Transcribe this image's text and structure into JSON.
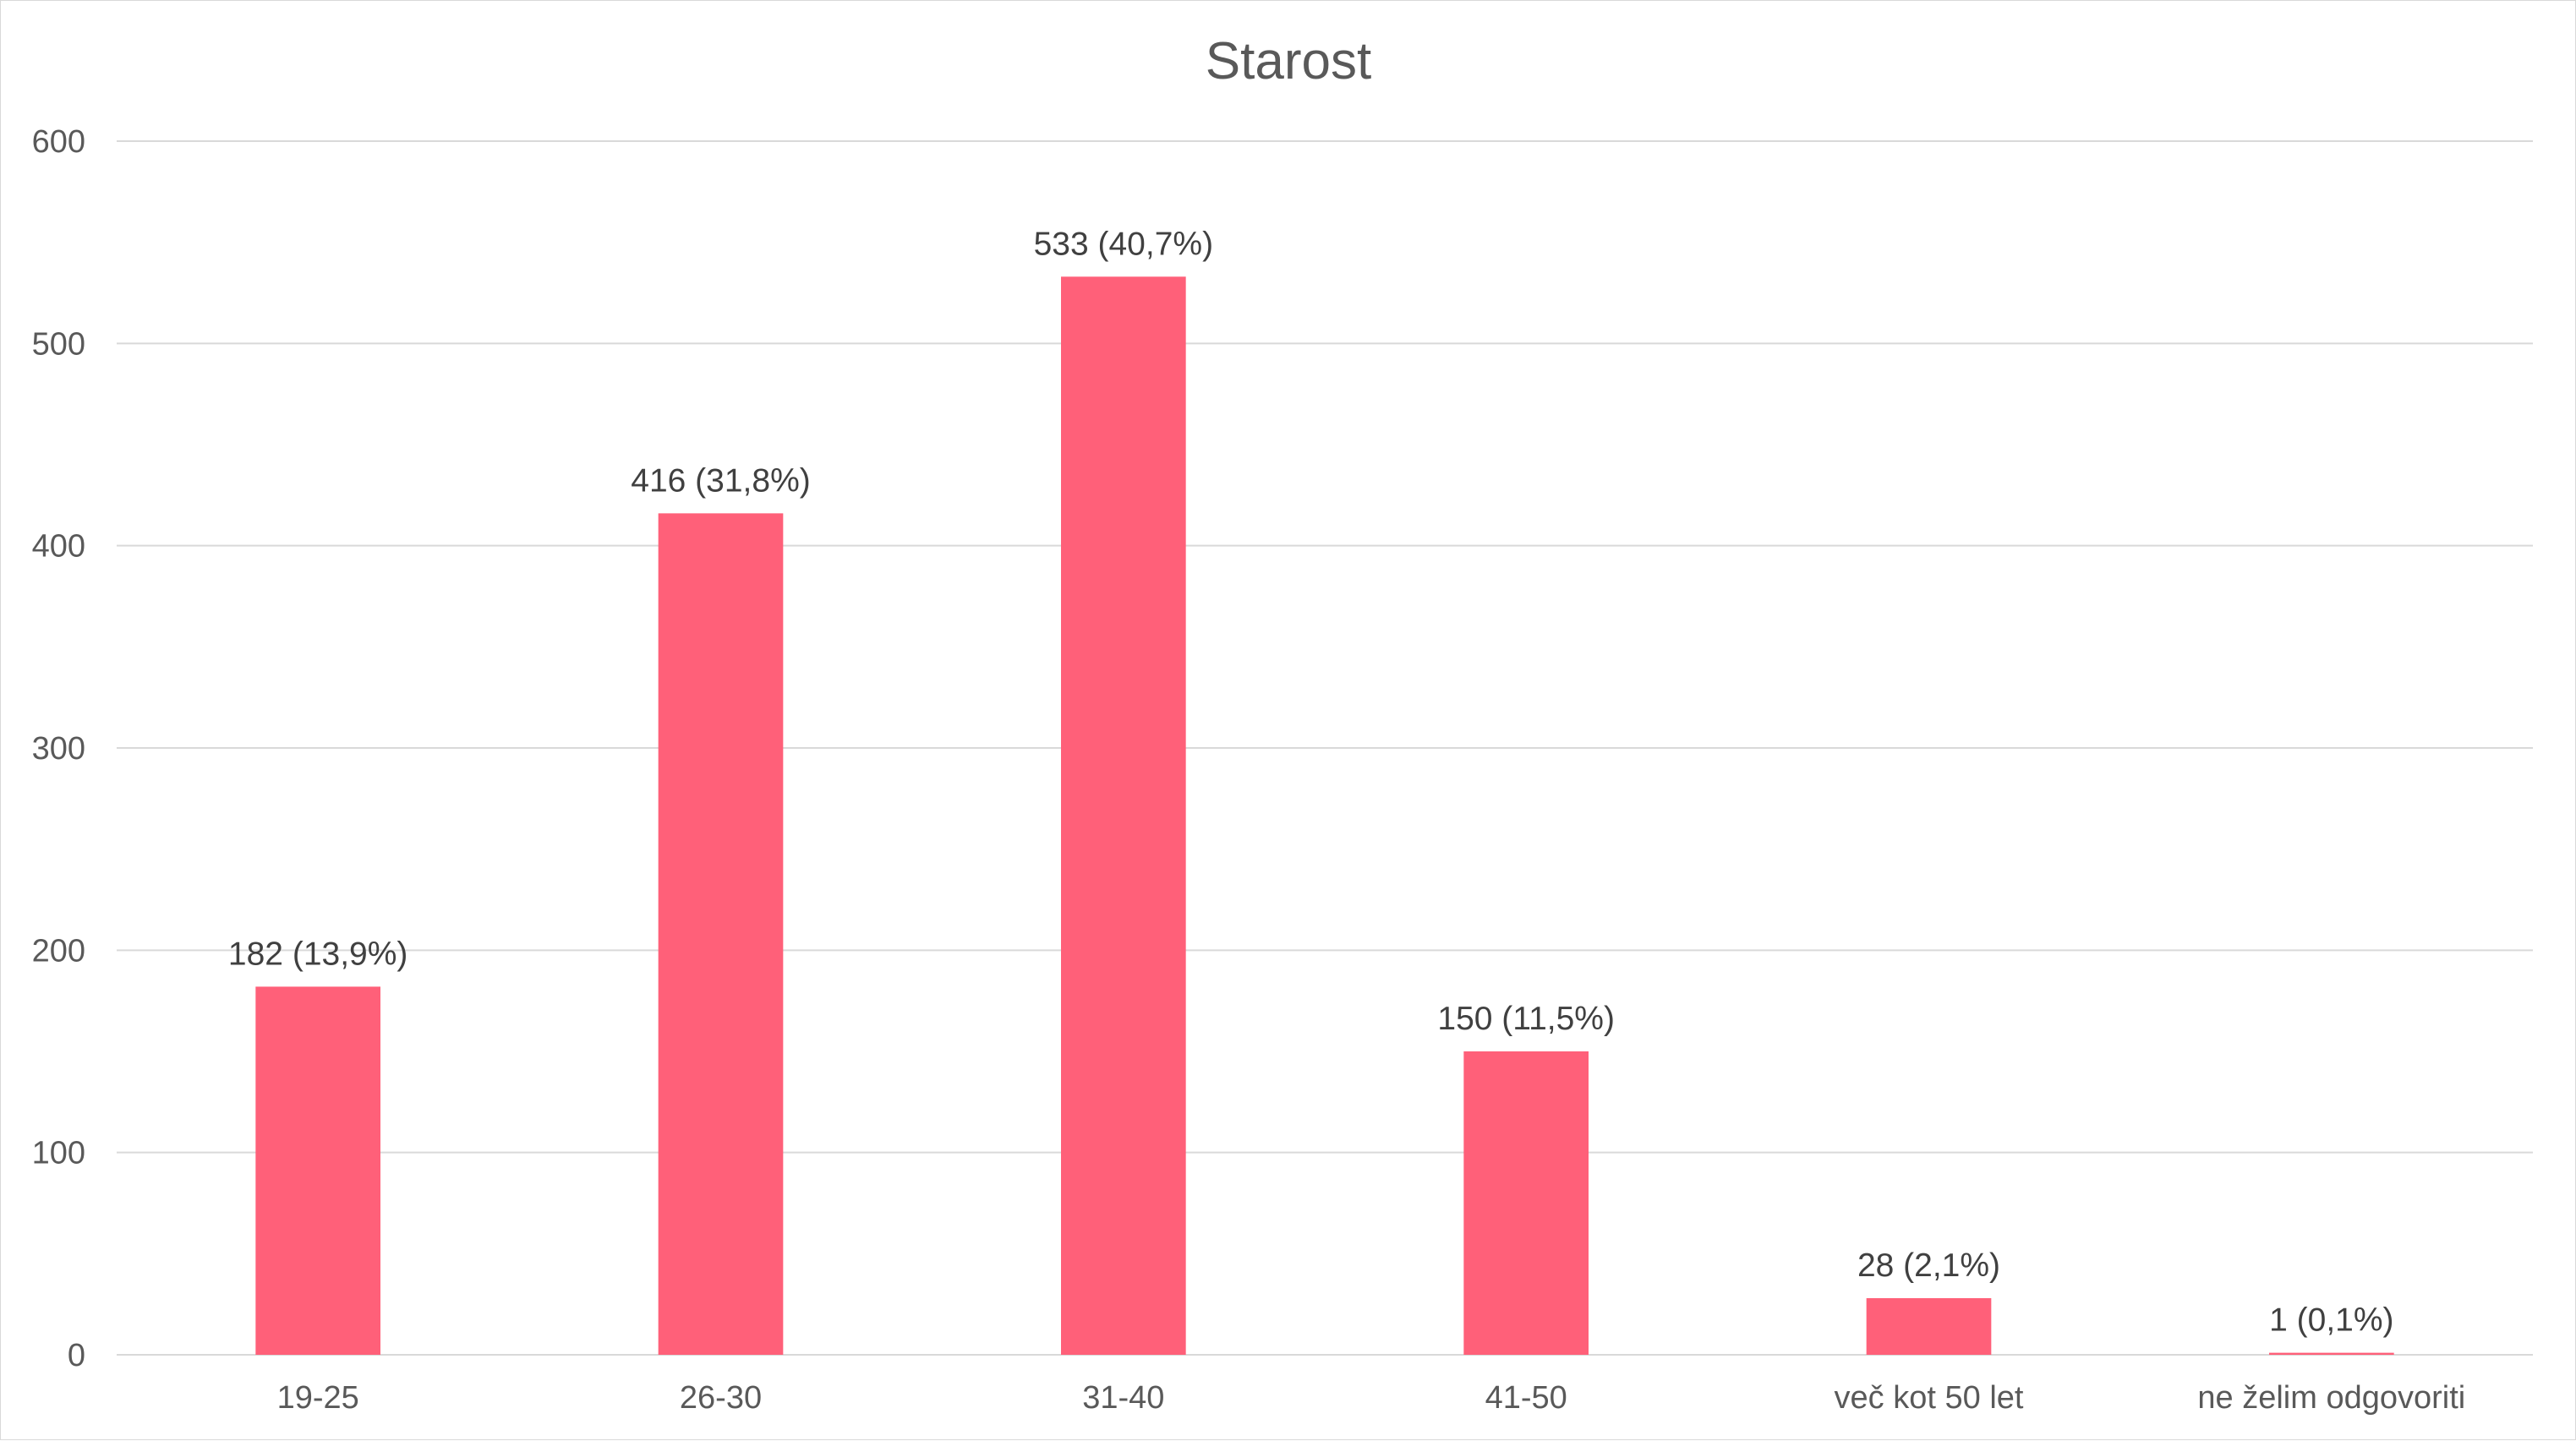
{
  "chart_data": {
    "type": "bar",
    "title": "Starost",
    "xlabel": "",
    "ylabel": "",
    "categories": [
      "19-25",
      "26-30",
      "31-40",
      "41-50",
      "več kot 50 let",
      "ne želim odgovoriti"
    ],
    "values": [
      182,
      416,
      533,
      150,
      28,
      1
    ],
    "data_labels": [
      "182 (13,9%)",
      "416 (31,8%)",
      "533 (40,7%)",
      "150 (11,5%)",
      "28 (2,1%)",
      "1 (0,1%)"
    ],
    "ylim": [
      0,
      600
    ],
    "yticks": [
      0,
      100,
      200,
      300,
      400,
      500,
      600
    ],
    "grid": true,
    "legend": "none",
    "bar_color": "#ff6079",
    "gridline_color": "#d9d9d9"
  }
}
